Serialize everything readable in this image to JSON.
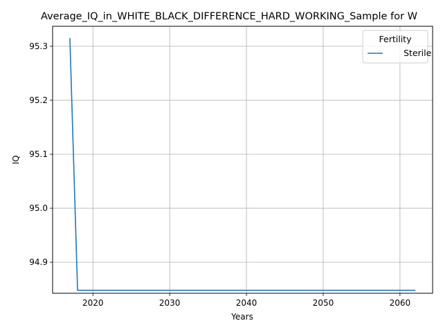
{
  "chart_data": {
    "type": "line",
    "title": "Average_IQ_in_WHITE_BLACK_DIFFERENCE_HARD_WORKING_Sample for W",
    "xlabel": "Years",
    "ylabel": "IQ",
    "xlim": [
      2014.75,
      2064.25
    ],
    "ylim": [
      94.8425,
      95.337
    ],
    "xticks": [
      2020,
      2030,
      2040,
      2050,
      2060
    ],
    "yticks": [
      94.9,
      95.0,
      95.1,
      95.2,
      95.3
    ],
    "ytick_labels": [
      "94.9",
      "95.0",
      "95.1",
      "95.2",
      "95.3"
    ],
    "grid": true,
    "legend": {
      "title": "Fertility",
      "placement": "top-right"
    },
    "series": [
      {
        "name": "Sterile",
        "color": "#1f77b4",
        "x": [
          2017,
          2018,
          2019,
          2020,
          2025,
          2030,
          2035,
          2040,
          2045,
          2050,
          2055,
          2060,
          2062
        ],
        "y": [
          95.315,
          94.848,
          94.848,
          94.848,
          94.848,
          94.848,
          94.848,
          94.848,
          94.848,
          94.848,
          94.848,
          94.848,
          94.848
        ]
      }
    ]
  }
}
